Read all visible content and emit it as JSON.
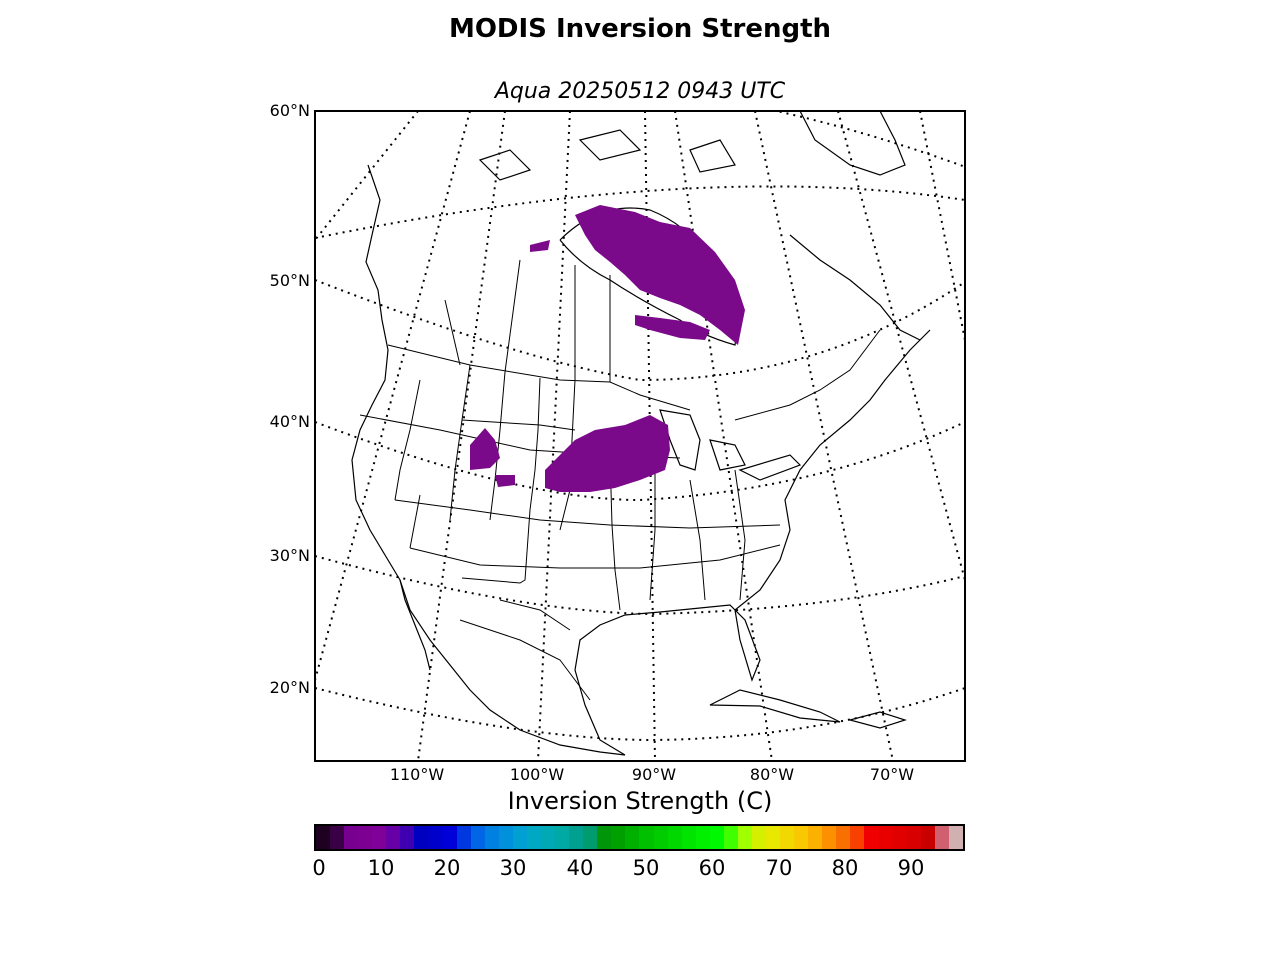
{
  "header": {
    "title": "MODIS Inversion Strength",
    "subtitle": "Aqua 20250512 0943 UTC"
  },
  "map": {
    "projection": "lambert-conformal",
    "lat_labels": [
      "60°N",
      "50°N",
      "40°N",
      "30°N",
      "20°N"
    ],
    "lon_labels": [
      "110°W",
      "100°W",
      "90°W",
      "80°W",
      "70°W"
    ],
    "graticule_style": "dotted",
    "coastline_color": "#000000",
    "data_regions": [
      {
        "name": "hudson-bay-ontario-region",
        "color": "#7b0a8a",
        "inversion_strength_range": [
          0,
          10
        ]
      },
      {
        "name": "upper-midwest-region",
        "color": "#7b0a8a",
        "inversion_strength_range": [
          0,
          10
        ]
      },
      {
        "name": "wyoming-colorado-region",
        "color": "#7b0a8a",
        "inversion_strength_range": [
          0,
          10
        ]
      }
    ]
  },
  "colorbar": {
    "title": "Inversion Strength (C)",
    "ticks": [
      "0",
      "10",
      "20",
      "30",
      "40",
      "50",
      "60",
      "70",
      "80",
      "90"
    ],
    "range": [
      0,
      98
    ],
    "colors": [
      "#1e0020",
      "#3a0045",
      "#780090",
      "#7c0092",
      "#80009a",
      "#6600a6",
      "#3f00b2",
      "#0000c0",
      "#0000cc",
      "#0000d8",
      "#0038e0",
      "#0066e6",
      "#0080e0",
      "#0090dc",
      "#00a0d2",
      "#00a8c4",
      "#00aab4",
      "#00aaa4",
      "#00a090",
      "#009c70",
      "#00960a",
      "#00a000",
      "#00b000",
      "#00c000",
      "#00cc00",
      "#00d800",
      "#00e400",
      "#00f000",
      "#00f800",
      "#40ff00",
      "#a0ff00",
      "#d4f000",
      "#e8e800",
      "#f0d800",
      "#f8c800",
      "#fcb000",
      "#fc9000",
      "#f87000",
      "#f84000",
      "#f00000",
      "#e80000",
      "#e00000",
      "#d80000",
      "#c80000",
      "#d06070",
      "#d0b0b0"
    ]
  }
}
